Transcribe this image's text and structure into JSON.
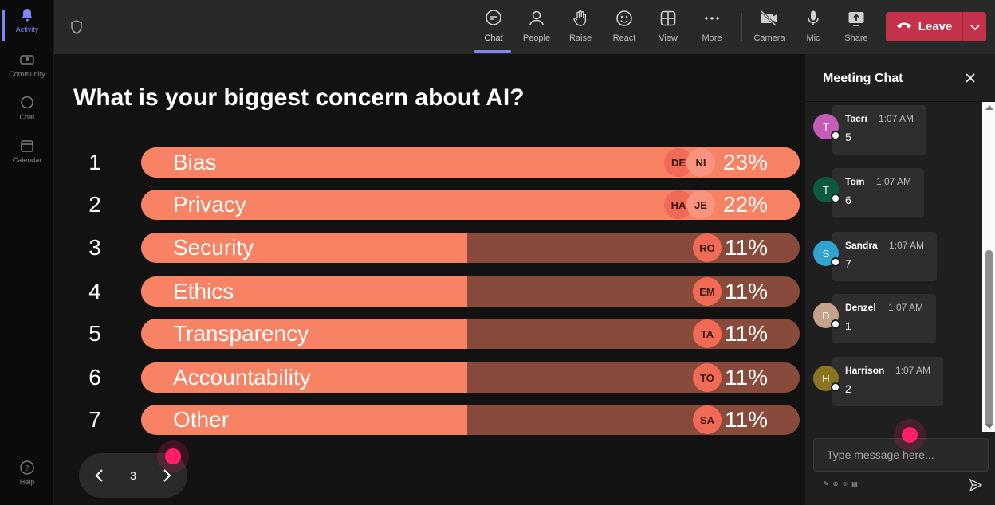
{
  "rail": {
    "items": [
      {
        "label": "Activity",
        "icon": "bell-icon"
      },
      {
        "label": "Community",
        "icon": "community-icon"
      },
      {
        "label": "Chat",
        "icon": "chat-icon"
      },
      {
        "label": "Calendar",
        "icon": "calendar-icon"
      }
    ],
    "help_label": "Help"
  },
  "toolbar": {
    "chat": "Chat",
    "people": "People",
    "raise": "Raise",
    "react": "React",
    "view": "View",
    "more": "More",
    "camera": "Camera",
    "mic": "Mic",
    "share": "Share",
    "leave": "Leave"
  },
  "poll": {
    "question": "What is your biggest concern about AI?",
    "options": [
      {
        "rank": "1",
        "label": "Bias",
        "percent": 23,
        "percent_text": "23%",
        "avatars": [
          "DE",
          "NI"
        ]
      },
      {
        "rank": "2",
        "label": "Privacy",
        "percent": 22,
        "percent_text": "22%",
        "avatars": [
          "HA",
          "JE"
        ]
      },
      {
        "rank": "3",
        "label": "Security",
        "percent": 11,
        "percent_text": "11%",
        "avatars": [
          "RO"
        ]
      },
      {
        "rank": "4",
        "label": "Ethics",
        "percent": 11,
        "percent_text": "11%",
        "avatars": [
          "EM"
        ]
      },
      {
        "rank": "5",
        "label": "Transparency",
        "percent": 11,
        "percent_text": "11%",
        "avatars": [
          "TA"
        ]
      },
      {
        "rank": "6",
        "label": "Accountability",
        "percent": 11,
        "percent_text": "11%",
        "avatars": [
          "TO"
        ]
      },
      {
        "rank": "7",
        "label": "Other",
        "percent": 11,
        "percent_text": "11%",
        "avatars": [
          "SA"
        ]
      }
    ],
    "page": "3"
  },
  "chat": {
    "title": "Meeting Chat",
    "messages": [
      {
        "initial": "T",
        "name": "Taeri",
        "time": "1:07 AM",
        "text": "5",
        "color": "#c45cb8"
      },
      {
        "initial": "T",
        "name": "Tom",
        "time": "1:07 AM",
        "text": "6",
        "color": "#0b5a3f"
      },
      {
        "initial": "S",
        "name": "Sandra",
        "time": "1:07 AM",
        "text": "7",
        "color": "#2fa3d1"
      },
      {
        "initial": "D",
        "name": "Denzel",
        "time": "1:07 AM",
        "text": "1",
        "color": "#c6a28c"
      },
      {
        "initial": "H",
        "name": "Harrison",
        "time": "1:07 AM",
        "text": "2",
        "color": "#8a7420"
      }
    ],
    "placeholder": "Type message here..."
  },
  "colors": {
    "bar_fill": "#f88264",
    "bar_track": "#874a3b",
    "leave": "#c4314b",
    "accent": "#7f85f5",
    "cursor": "#ff1f6b"
  }
}
